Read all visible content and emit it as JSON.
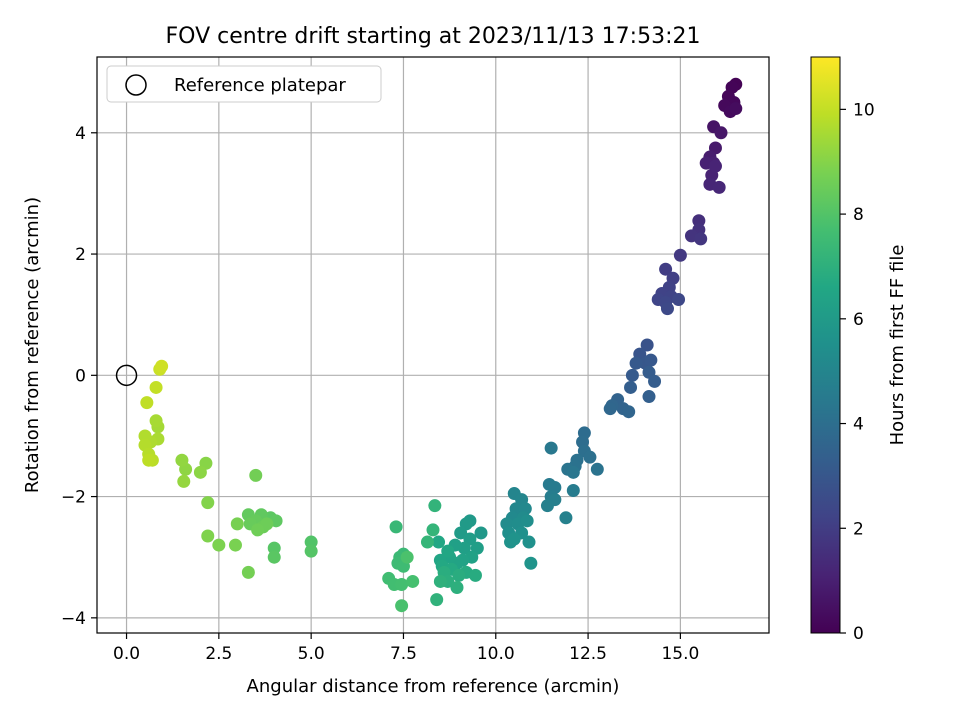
{
  "chart_data": {
    "type": "scatter",
    "title": "FOV centre drift starting at 2023/11/13 17:53:21",
    "xlabel": "Angular distance from reference (arcmin)",
    "ylabel": "Rotation from reference (arcmin)",
    "colorbar_label": "Hours from first FF file",
    "xlim": [
      -0.8,
      17.4
    ],
    "ylim": [
      -4.25,
      5.25
    ],
    "xticks": [
      0.0,
      2.5,
      5.0,
      7.5,
      10.0,
      12.5,
      15.0
    ],
    "xtick_labels": [
      "0.0",
      "2.5",
      "5.0",
      "7.5",
      "10.0",
      "12.5",
      "15.0"
    ],
    "yticks": [
      -4,
      -2,
      0,
      2,
      4
    ],
    "ytick_labels": [
      "−4",
      "−2",
      "0",
      "2",
      "4"
    ],
    "clim": [
      0,
      11
    ],
    "cticks": [
      0,
      2,
      4,
      6,
      8,
      10
    ],
    "ctick_labels": [
      "0",
      "2",
      "4",
      "6",
      "8",
      "10"
    ],
    "colormap": "viridis",
    "grid": true,
    "legend": {
      "position": "top-left",
      "entries": [
        "Reference platepar"
      ]
    },
    "reference_point": {
      "label": "Reference platepar",
      "x": 0,
      "y": 0
    },
    "points": [
      [
        16.5,
        4.8,
        0.05
      ],
      [
        16.4,
        4.75,
        0.1
      ],
      [
        16.3,
        4.6,
        0.15
      ],
      [
        16.45,
        4.5,
        0.2
      ],
      [
        16.2,
        4.45,
        0.25
      ],
      [
        16.35,
        4.35,
        0.3
      ],
      [
        16.5,
        4.4,
        0.35
      ],
      [
        15.9,
        4.1,
        0.6
      ],
      [
        16.1,
        4.0,
        0.7
      ],
      [
        15.95,
        3.75,
        0.8
      ],
      [
        15.8,
        3.6,
        0.9
      ],
      [
        15.9,
        3.5,
        1.0
      ],
      [
        15.7,
        3.5,
        1.05
      ],
      [
        15.85,
        3.3,
        1.1
      ],
      [
        15.8,
        3.15,
        1.2
      ],
      [
        16.05,
        3.1,
        1.25
      ],
      [
        15.95,
        3.45,
        1.15
      ],
      [
        15.5,
        2.55,
        1.5
      ],
      [
        15.5,
        2.4,
        1.6
      ],
      [
        15.3,
        2.3,
        1.7
      ],
      [
        15.55,
        2.25,
        1.75
      ],
      [
        15.0,
        1.98,
        1.85
      ],
      [
        14.6,
        1.75,
        2.0
      ],
      [
        14.8,
        1.6,
        2.1
      ],
      [
        14.7,
        1.45,
        2.15
      ],
      [
        14.5,
        1.35,
        2.2
      ],
      [
        14.75,
        1.3,
        2.25
      ],
      [
        14.4,
        1.25,
        2.3
      ],
      [
        14.6,
        1.2,
        2.35
      ],
      [
        14.95,
        1.25,
        2.4
      ],
      [
        14.65,
        1.1,
        2.45
      ],
      [
        14.1,
        0.5,
        2.8
      ],
      [
        13.9,
        0.35,
        2.9
      ],
      [
        14.05,
        0.2,
        3.0
      ],
      [
        14.2,
        0.25,
        3.05
      ],
      [
        13.8,
        0.2,
        3.1
      ],
      [
        13.7,
        0.0,
        3.15
      ],
      [
        14.15,
        0.05,
        3.2
      ],
      [
        14.3,
        -0.1,
        3.25
      ],
      [
        13.65,
        -0.2,
        3.3
      ],
      [
        14.15,
        -0.35,
        3.35
      ],
      [
        13.3,
        -0.4,
        3.5
      ],
      [
        13.45,
        -0.55,
        3.55
      ],
      [
        13.6,
        -0.6,
        3.6
      ],
      [
        13.15,
        -0.5,
        3.65
      ],
      [
        13.1,
        -0.55,
        3.7
      ],
      [
        12.4,
        -0.95,
        3.9
      ],
      [
        12.35,
        -1.1,
        3.95
      ],
      [
        12.4,
        -1.25,
        4.0
      ],
      [
        12.55,
        -1.35,
        4.05
      ],
      [
        12.2,
        -1.4,
        4.1
      ],
      [
        12.15,
        -1.5,
        4.15
      ],
      [
        12.75,
        -1.55,
        4.2
      ],
      [
        11.95,
        -1.55,
        4.25
      ],
      [
        12.1,
        -1.6,
        4.3
      ],
      [
        11.5,
        -1.2,
        4.4
      ],
      [
        11.45,
        -1.8,
        4.5
      ],
      [
        11.6,
        -1.85,
        4.55
      ],
      [
        12.1,
        -1.9,
        4.6
      ],
      [
        11.5,
        -2.0,
        4.65
      ],
      [
        11.6,
        -2.05,
        4.7
      ],
      [
        11.4,
        -2.15,
        4.75
      ],
      [
        11.9,
        -2.35,
        4.8
      ],
      [
        10.5,
        -1.95,
        5.0
      ],
      [
        10.7,
        -2.05,
        5.05
      ],
      [
        10.55,
        -2.2,
        5.1
      ],
      [
        10.8,
        -2.2,
        5.15
      ],
      [
        10.45,
        -2.35,
        5.2
      ],
      [
        10.75,
        -2.35,
        5.25
      ],
      [
        10.3,
        -2.45,
        5.3
      ],
      [
        10.6,
        -2.45,
        5.35
      ],
      [
        10.85,
        -2.4,
        5.4
      ],
      [
        10.35,
        -2.6,
        5.45
      ],
      [
        10.7,
        -2.6,
        5.5
      ],
      [
        10.9,
        -2.75,
        5.55
      ],
      [
        10.4,
        -2.75,
        5.6
      ],
      [
        10.5,
        -2.7,
        5.65
      ],
      [
        10.95,
        -3.1,
        5.7
      ],
      [
        9.6,
        -2.6,
        5.9
      ],
      [
        9.3,
        -2.4,
        5.95
      ],
      [
        9.2,
        -2.45,
        6.0
      ],
      [
        9.05,
        -2.6,
        6.05
      ],
      [
        9.3,
        -2.7,
        6.1
      ],
      [
        9.5,
        -2.85,
        6.15
      ],
      [
        9.15,
        -2.85,
        6.2
      ],
      [
        8.9,
        -2.8,
        6.25
      ],
      [
        9.35,
        -3.0,
        6.3
      ],
      [
        9.1,
        -3.05,
        6.35
      ],
      [
        8.95,
        -3.1,
        6.4
      ],
      [
        8.75,
        -3.0,
        6.45
      ],
      [
        8.5,
        -3.05,
        6.5
      ],
      [
        8.7,
        -2.9,
        6.55
      ],
      [
        8.45,
        -2.75,
        6.6
      ],
      [
        8.55,
        -3.15,
        6.65
      ],
      [
        8.8,
        -3.2,
        6.7
      ],
      [
        9.2,
        -3.25,
        6.75
      ],
      [
        9.45,
        -3.3,
        6.8
      ],
      [
        9.0,
        -3.3,
        6.85
      ],
      [
        8.6,
        -3.25,
        6.9
      ],
      [
        8.7,
        -3.4,
        6.95
      ],
      [
        8.95,
        -3.5,
        7.0
      ],
      [
        8.5,
        -3.4,
        7.05
      ],
      [
        8.4,
        -3.7,
        7.1
      ],
      [
        8.35,
        -2.15,
        7.15
      ],
      [
        8.3,
        -2.55,
        7.2
      ],
      [
        8.15,
        -2.75,
        7.25
      ],
      [
        7.3,
        -2.5,
        7.35
      ],
      [
        7.5,
        -2.95,
        7.4
      ],
      [
        7.4,
        -3.0,
        7.45
      ],
      [
        7.35,
        -3.1,
        7.5
      ],
      [
        7.5,
        -3.15,
        7.55
      ],
      [
        7.1,
        -3.35,
        7.6
      ],
      [
        7.25,
        -3.45,
        7.65
      ],
      [
        7.45,
        -3.45,
        7.7
      ],
      [
        7.75,
        -3.4,
        7.75
      ],
      [
        7.45,
        -3.8,
        7.8
      ],
      [
        7.6,
        -3.0,
        7.85
      ],
      [
        5.0,
        -2.75,
        8.0
      ],
      [
        5.0,
        -2.9,
        8.05
      ],
      [
        4.0,
        -2.85,
        8.1
      ],
      [
        4.0,
        -3.0,
        8.15
      ],
      [
        3.9,
        -2.35,
        8.2
      ],
      [
        4.05,
        -2.4,
        8.25
      ],
      [
        3.65,
        -2.3,
        8.3
      ],
      [
        3.3,
        -2.3,
        8.35
      ],
      [
        3.5,
        -2.4,
        8.4
      ],
      [
        3.35,
        -2.45,
        8.45
      ],
      [
        3.7,
        -2.5,
        8.5
      ],
      [
        3.8,
        -2.45,
        8.55
      ],
      [
        3.55,
        -2.55,
        8.6
      ],
      [
        3.5,
        -1.65,
        8.65
      ],
      [
        3.3,
        -3.25,
        8.7
      ],
      [
        3.0,
        -2.45,
        8.75
      ],
      [
        2.95,
        -2.8,
        8.8
      ],
      [
        2.5,
        -2.8,
        8.85
      ],
      [
        2.2,
        -2.65,
        8.9
      ],
      [
        2.2,
        -2.1,
        8.95
      ],
      [
        2.15,
        -1.45,
        9.05
      ],
      [
        2.0,
        -1.6,
        9.1
      ],
      [
        1.6,
        -1.55,
        9.15
      ],
      [
        1.5,
        -1.4,
        9.2
      ],
      [
        1.55,
        -1.75,
        9.25
      ],
      [
        0.85,
        -0.85,
        9.5
      ],
      [
        0.8,
        -0.75,
        9.55
      ],
      [
        0.85,
        -1.05,
        9.6
      ],
      [
        0.65,
        -1.1,
        9.65
      ],
      [
        0.5,
        -1.0,
        9.7
      ],
      [
        0.5,
        -1.15,
        9.75
      ],
      [
        0.6,
        -1.3,
        9.8
      ],
      [
        0.7,
        -1.4,
        9.85
      ],
      [
        0.6,
        -1.4,
        9.9
      ],
      [
        0.55,
        -0.45,
        9.95
      ],
      [
        0.8,
        -0.2,
        10.0
      ],
      [
        0.9,
        0.1,
        10.1
      ],
      [
        0.95,
        0.15,
        10.2
      ]
    ]
  }
}
